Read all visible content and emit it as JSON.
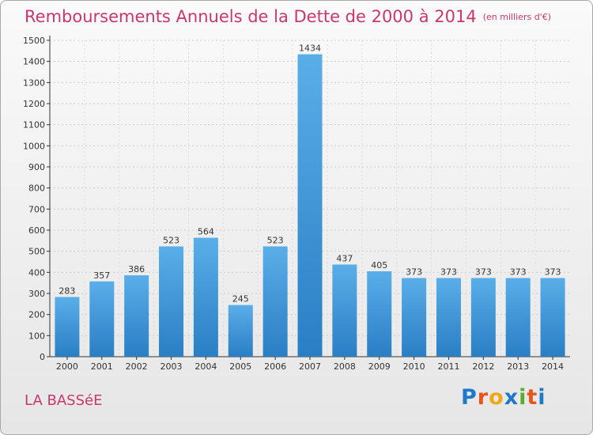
{
  "header": {
    "title": "Remboursements Annuels de la Dette de 2000 à 2014",
    "unit": "(en milliers d'€)"
  },
  "footer": {
    "city": "LA BASSéE",
    "logo": "Proxiti"
  },
  "colors": {
    "title": "#c9376e",
    "bar_light": "#5aaee8",
    "bar_dark": "#2a7ec4",
    "logo_letters": [
      "#1f78c8",
      "#e8541a",
      "#f0a818",
      "#1f78c8",
      "#58b02a",
      "#e8541a",
      "#1f78c8"
    ]
  },
  "chart_data": {
    "type": "bar",
    "categories": [
      "2000",
      "2001",
      "2002",
      "2003",
      "2004",
      "2005",
      "2006",
      "2007",
      "2008",
      "2009",
      "2010",
      "2011",
      "2012",
      "2013",
      "2014"
    ],
    "values": [
      283,
      357,
      386,
      523,
      564,
      245,
      523,
      1434,
      437,
      405,
      373,
      373,
      373,
      373,
      373
    ],
    "yticks": [
      0,
      100,
      200,
      300,
      400,
      500,
      600,
      700,
      800,
      900,
      1000,
      1100,
      1200,
      1300,
      1400,
      1500
    ],
    "ylim": [
      0,
      1500
    ],
    "grid": true,
    "xlabel": "",
    "ylabel": ""
  }
}
